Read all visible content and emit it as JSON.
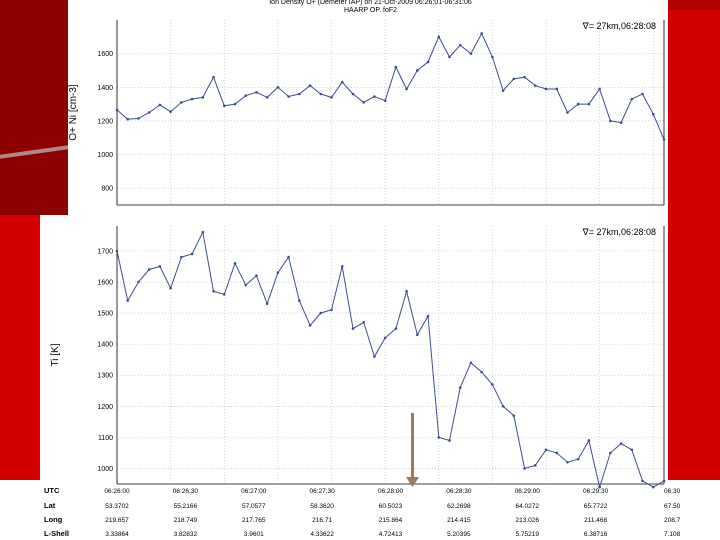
{
  "colors": {
    "background": "#d40000",
    "series": "#3b4f8c",
    "arrow": "#a0785a"
  },
  "chart_data": [
    {
      "type": "line",
      "title": "Ion Density O+ (Demeter IAP) on 21-Oct-2009 06:26:01-06:31:06",
      "subtitle": "HAARP OP. foF2",
      "ylabel": "O+ Ni [cm-3]",
      "legend": "∇= 27km,06:28:08",
      "legend_position": "top-right",
      "ylim": [
        700,
        1800
      ],
      "yticks": [
        800,
        1000,
        1200,
        1400,
        1600
      ],
      "grid": true,
      "x_seconds": [
        0,
        6,
        12,
        18,
        24,
        30,
        36,
        42,
        48,
        54,
        60,
        66,
        72,
        78,
        84,
        90,
        96,
        102,
        108,
        114,
        120,
        126,
        132,
        138,
        144,
        150,
        156,
        162,
        168,
        174,
        180,
        186,
        192,
        198,
        204,
        210,
        216,
        222,
        228,
        234,
        240,
        246,
        252,
        258,
        264,
        270,
        276,
        282,
        288,
        294,
        300,
        306
      ],
      "values": [
        1265,
        1210,
        1215,
        1250,
        1295,
        1255,
        1310,
        1330,
        1340,
        1460,
        1290,
        1300,
        1350,
        1370,
        1340,
        1400,
        1345,
        1360,
        1410,
        1360,
        1340,
        1430,
        1360,
        1310,
        1345,
        1320,
        1520,
        1390,
        1500,
        1550,
        1700,
        1580,
        1650,
        1600,
        1720,
        1580,
        1380,
        1450,
        1460,
        1410,
        1390,
        1390,
        1250,
        1300,
        1300,
        1390,
        1200,
        1190,
        1330,
        1360,
        1240,
        1090
      ]
    },
    {
      "type": "line",
      "title": "",
      "ylabel": "Ti [K]",
      "legend": "∇= 27km,06:28:08",
      "legend_position": "top-right",
      "ylim": [
        950,
        1780
      ],
      "yticks": [
        1000,
        1100,
        1200,
        1300,
        1400,
        1500,
        1600,
        1700
      ],
      "grid": true,
      "x_seconds": [
        0,
        6,
        12,
        18,
        24,
        30,
        36,
        42,
        48,
        54,
        60,
        66,
        72,
        78,
        84,
        90,
        96,
        102,
        108,
        114,
        120,
        126,
        132,
        138,
        144,
        150,
        156,
        162,
        168,
        174,
        180,
        186,
        192,
        198,
        204,
        210,
        216,
        222,
        228,
        234,
        240,
        246,
        252,
        258,
        264,
        270,
        276,
        282,
        288,
        294,
        300,
        306
      ],
      "values": [
        1700,
        1540,
        1600,
        1640,
        1650,
        1580,
        1680,
        1690,
        1760,
        1570,
        1560,
        1660,
        1590,
        1620,
        1530,
        1630,
        1680,
        1540,
        1460,
        1500,
        1510,
        1650,
        1450,
        1470,
        1360,
        1420,
        1450,
        1570,
        1430,
        1490,
        1100,
        1090,
        1260,
        1340,
        1310,
        1270,
        1200,
        1170,
        1000,
        1010,
        1060,
        1050,
        1020,
        1030,
        1090,
        940,
        1050,
        1080,
        1060,
        960,
        940,
        960
      ]
    }
  ],
  "table": {
    "headers": [
      "UTC",
      "Lat",
      "Long",
      "L-Shell"
    ],
    "columns": [
      [
        "06:26:00",
        "53.3702",
        "219.657",
        "3.33864"
      ],
      [
        "06:26:30",
        "55.2166",
        "218.749",
        "3.82832"
      ],
      [
        "06:27:00",
        "57.0577",
        "217.765",
        "3.9601"
      ],
      [
        "06:27:30",
        "58.3620",
        "216.71",
        "4.33622"
      ],
      [
        "06:28:00",
        "60.5023",
        "215.864",
        "4.72413"
      ],
      [
        "06:28:30",
        "62.2698",
        "214.415",
        "5.20395"
      ],
      [
        "06:29:00",
        "64.0272",
        "213.026",
        "5.75219"
      ],
      [
        "06:29:30",
        "65.7722",
        "211.468",
        "6.38716"
      ],
      [
        "06:30",
        "67.50",
        "208.7",
        "7.108"
      ]
    ]
  }
}
